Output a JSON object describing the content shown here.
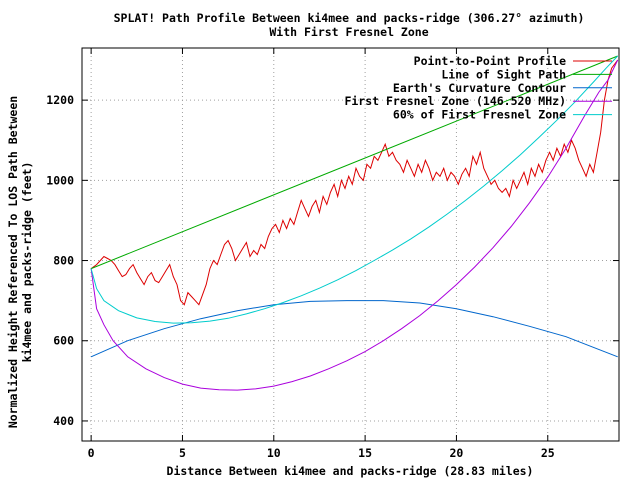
{
  "chart_data": {
    "type": "line",
    "title": "SPLAT! Path Profile Between ki4mee and packs-ridge (306.27° azimuth)",
    "subtitle": "With First Fresnel Zone",
    "xlabel": "Distance Between ki4mee and packs-ridge (28.83 miles)",
    "ylabel_line1": "Normalized Height Referenced To LOS Path Between",
    "ylabel_line2": "ki4mee and packs-ridge (feet)",
    "xlim": [
      -0.5,
      28.9
    ],
    "ylim": [
      350,
      1330
    ],
    "x_ticks": [
      0,
      5,
      10,
      15,
      20,
      25
    ],
    "y_ticks": [
      400,
      600,
      800,
      1000,
      1200
    ],
    "grid": true,
    "legend_position": "top-right",
    "colors": {
      "profile": "#dd0000",
      "los": "#00aa00",
      "earth": "#0066cc",
      "fresnel": "#aa00dd",
      "fresnel60": "#00cccc"
    },
    "series": [
      {
        "name": "Point-to-Point Profile",
        "color_key": "profile",
        "x": [
          0,
          0.3,
          0.5,
          0.7,
          0.9,
          1.1,
          1.3,
          1.5,
          1.7,
          1.9,
          2.1,
          2.3,
          2.5,
          2.7,
          2.9,
          3.1,
          3.3,
          3.5,
          3.7,
          3.9,
          4.1,
          4.3,
          4.5,
          4.7,
          4.9,
          5.1,
          5.3,
          5.5,
          5.7,
          5.9,
          6.1,
          6.3,
          6.5,
          6.7,
          6.9,
          7.1,
          7.3,
          7.5,
          7.7,
          7.9,
          8.1,
          8.3,
          8.5,
          8.7,
          8.9,
          9.1,
          9.3,
          9.5,
          9.7,
          9.9,
          10.1,
          10.3,
          10.5,
          10.7,
          10.9,
          11.1,
          11.3,
          11.5,
          11.7,
          11.9,
          12.1,
          12.3,
          12.5,
          12.7,
          12.9,
          13.1,
          13.3,
          13.5,
          13.7,
          13.9,
          14.1,
          14.3,
          14.5,
          14.7,
          14.9,
          15.1,
          15.3,
          15.5,
          15.7,
          15.9,
          16.1,
          16.3,
          16.5,
          16.7,
          16.9,
          17.1,
          17.3,
          17.5,
          17.7,
          17.9,
          18.1,
          18.3,
          18.5,
          18.7,
          18.9,
          19.1,
          19.3,
          19.5,
          19.7,
          19.9,
          20.1,
          20.3,
          20.5,
          20.7,
          20.9,
          21.1,
          21.3,
          21.5,
          21.7,
          21.9,
          22.1,
          22.3,
          22.5,
          22.7,
          22.9,
          23.1,
          23.3,
          23.5,
          23.7,
          23.9,
          24.1,
          24.3,
          24.5,
          24.7,
          24.9,
          25.1,
          25.3,
          25.5,
          25.7,
          25.9,
          26.1,
          26.3,
          26.5,
          26.7,
          26.9,
          27.1,
          27.3,
          27.5,
          27.7,
          27.9,
          28.1,
          28.3,
          28.5,
          28.83
        ],
        "values": [
          780,
          790,
          800,
          810,
          805,
          800,
          790,
          775,
          760,
          765,
          780,
          790,
          770,
          755,
          740,
          760,
          770,
          750,
          745,
          760,
          775,
          790,
          760,
          740,
          700,
          690,
          720,
          710,
          700,
          690,
          715,
          740,
          780,
          800,
          790,
          815,
          840,
          850,
          830,
          800,
          815,
          830,
          845,
          810,
          825,
          815,
          840,
          830,
          860,
          880,
          890,
          870,
          900,
          880,
          905,
          890,
          920,
          950,
          930,
          910,
          935,
          950,
          920,
          960,
          940,
          970,
          990,
          960,
          1000,
          980,
          1010,
          990,
          1030,
          1010,
          1000,
          1040,
          1030,
          1060,
          1050,
          1070,
          1090,
          1060,
          1070,
          1050,
          1040,
          1020,
          1050,
          1030,
          1010,
          1040,
          1020,
          1050,
          1030,
          1000,
          1020,
          1010,
          1030,
          1000,
          1020,
          1010,
          990,
          1015,
          1030,
          1010,
          1060,
          1040,
          1070,
          1030,
          1010,
          990,
          1000,
          980,
          970,
          980,
          960,
          1000,
          980,
          1000,
          1020,
          990,
          1030,
          1010,
          1040,
          1020,
          1050,
          1070,
          1050,
          1080,
          1060,
          1090,
          1070,
          1100,
          1080,
          1050,
          1030,
          1010,
          1040,
          1020,
          1070,
          1120,
          1200,
          1250,
          1280,
          1300
        ]
      },
      {
        "name": "Line of Sight Path",
        "color_key": "los",
        "x": [
          0,
          28.83
        ],
        "values": [
          780,
          1310
        ]
      },
      {
        "name": "Earth's Curvature Contour",
        "color_key": "earth",
        "x": [
          0,
          2,
          4,
          6,
          8,
          10,
          12,
          14,
          16,
          18,
          20,
          22,
          24,
          26,
          28.83
        ],
        "values": [
          560,
          600,
          630,
          655,
          675,
          690,
          698,
          700,
          700,
          694,
          680,
          660,
          636,
          610,
          560
        ]
      },
      {
        "name": "First Fresnel Zone (146.520 MHz)",
        "color_key": "fresnel",
        "x": [
          0,
          0.3,
          0.7,
          1.2,
          2,
          3,
          4,
          5,
          6,
          7,
          8,
          9,
          10,
          11,
          12,
          13,
          14,
          15,
          16,
          17,
          18,
          19,
          20,
          21,
          22,
          23,
          24,
          25,
          26,
          27,
          27.8,
          28.3,
          28.83
        ],
        "values": [
          780,
          680,
          640,
          600,
          560,
          530,
          508,
          492,
          482,
          478,
          477,
          480,
          487,
          498,
          512,
          530,
          550,
          573,
          600,
          630,
          663,
          700,
          740,
          784,
          832,
          885,
          944,
          1008,
          1080,
          1160,
          1220,
          1250,
          1300
        ]
      },
      {
        "name": "60% of First Fresnel Zone",
        "color_key": "fresnel60",
        "x": [
          0,
          0.3,
          0.7,
          1.5,
          2.5,
          3.5,
          4.5,
          5.5,
          6.5,
          7.5,
          8.5,
          9.5,
          10.5,
          11.5,
          12.5,
          13.5,
          14.5,
          15.5,
          16.5,
          17.5,
          18.5,
          19.5,
          20.5,
          21.5,
          22.5,
          23.5,
          24.5,
          25.5,
          26.5,
          27.5,
          28.2,
          28.83
        ],
        "values": [
          780,
          730,
          700,
          675,
          657,
          648,
          644,
          645,
          649,
          656,
          667,
          680,
          695,
          712,
          731,
          752,
          775,
          800,
          826,
          854,
          884,
          916,
          950,
          986,
          1024,
          1064,
          1106,
          1150,
          1196,
          1245,
          1280,
          1310
        ]
      }
    ]
  }
}
